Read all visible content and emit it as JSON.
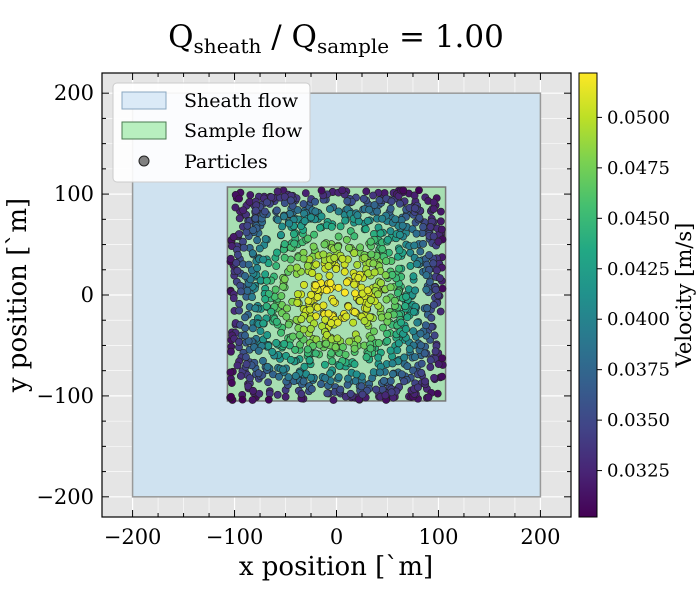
{
  "chart_data": {
    "type": "scatter",
    "title": "Q_sheath / Q_sample = 1.00",
    "title_main": "Q",
    "title_sub1": "sheath",
    "title_mid": " / Q",
    "title_sub2": "sample",
    "title_end": " = 1.00",
    "xlabel": "x position [`m]",
    "ylabel": "y position [`m]",
    "xlim": [
      -230,
      230
    ],
    "ylim": [
      -220,
      220
    ],
    "xticks": [
      -200,
      -100,
      0,
      100,
      200
    ],
    "yticks": [
      -200,
      -100,
      0,
      100,
      200
    ],
    "xtick_labels": [
      "−200",
      "−100",
      "0",
      "100",
      "200"
    ],
    "ytick_labels": [
      "−200",
      "−100",
      "0",
      "100",
      "200"
    ],
    "grid": true,
    "legend_position": "top-left",
    "sheath_flow": {
      "name": "Sheath flow",
      "x": [
        -200,
        200
      ],
      "y": [
        -200,
        200
      ],
      "color": "#cfe2f0"
    },
    "sample_flow": {
      "name": "Sample flow",
      "x": [
        -107,
        107
      ],
      "y": [
        -105,
        107
      ],
      "color": "#a7dfb2"
    },
    "particles": {
      "name": "Particles",
      "count": 1200,
      "edge_color": "#222222",
      "description_colormap": "viridis"
    },
    "colorbar": {
      "label": "Velocity [m/s]",
      "vmin": 0.0302,
      "vmax": 0.0522,
      "ticks": [
        0.0325,
        0.035,
        0.0375,
        0.04,
        0.0425,
        0.045,
        0.0475,
        0.05
      ],
      "tick_labels": [
        "0.0325",
        "0.0350",
        "0.0375",
        "0.0400",
        "0.0425",
        "0.0450",
        "0.0475",
        "0.0500"
      ],
      "colormap": "viridis"
    }
  }
}
